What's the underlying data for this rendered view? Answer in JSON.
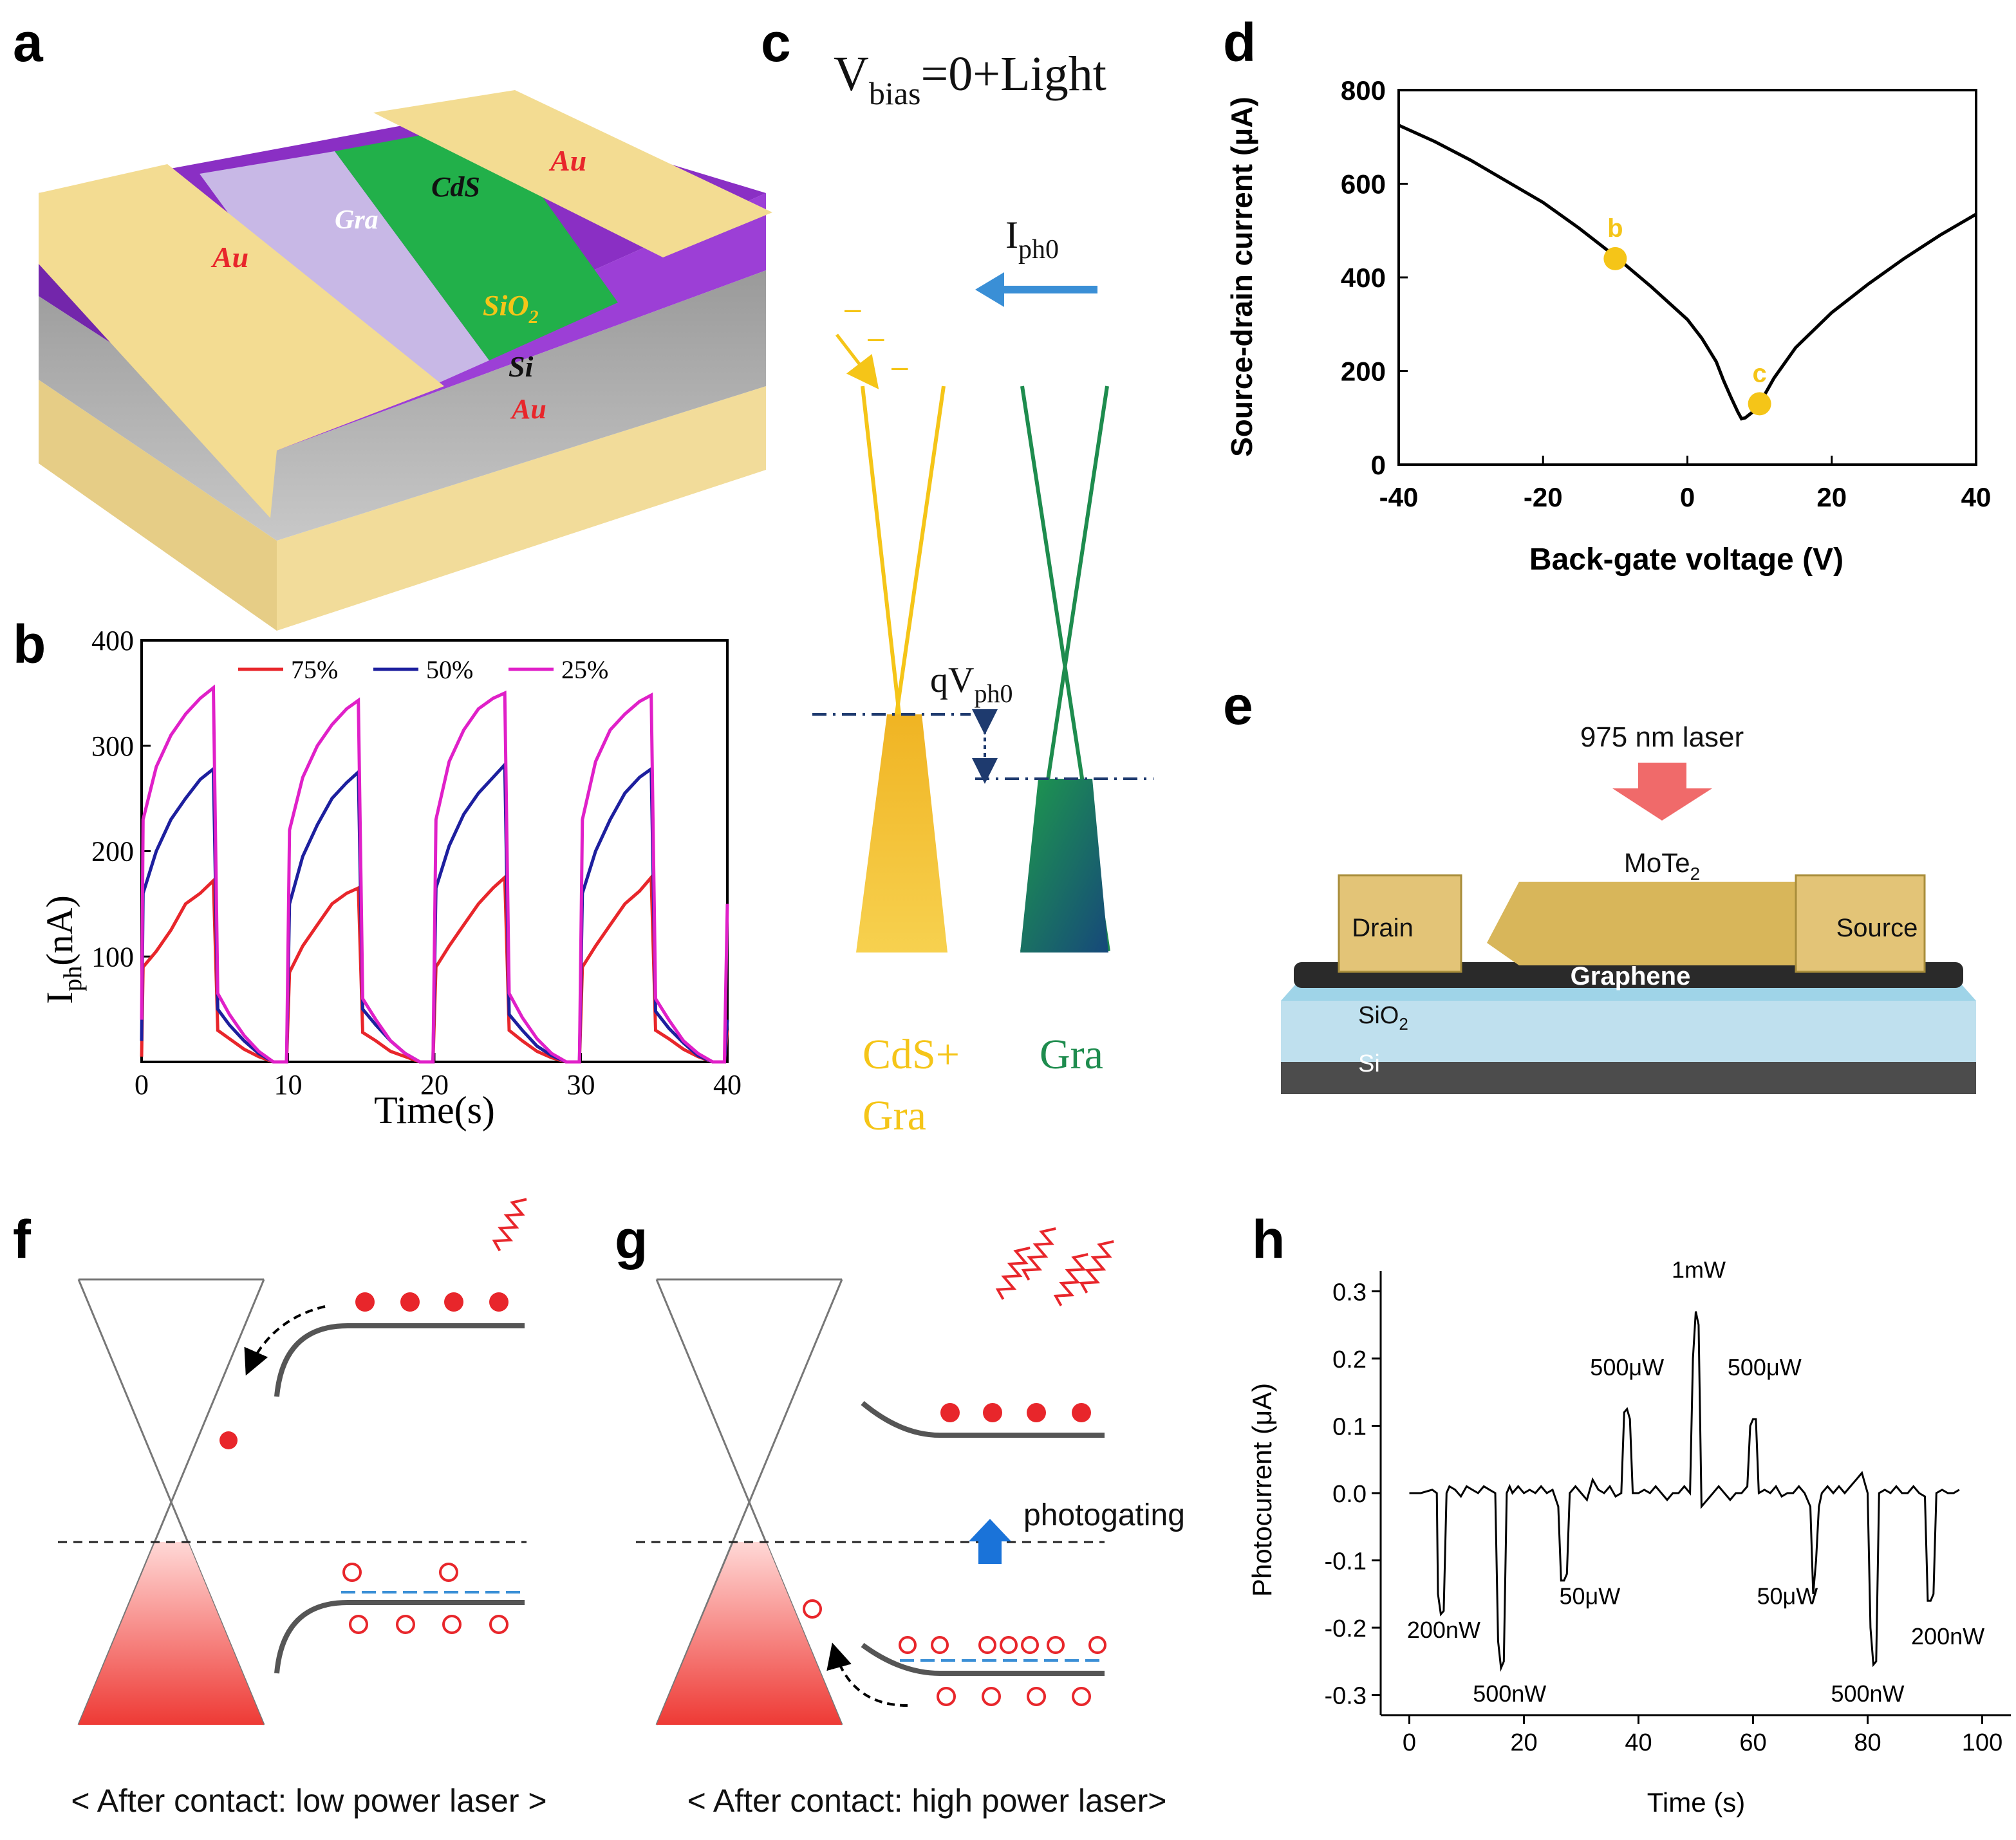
{
  "panels": {
    "a": {
      "label": "a",
      "layers": {
        "au_top_left": "Au",
        "au_top_right": "Au",
        "gra": "Gra",
        "cds": "CdS",
        "sio2": "SiO",
        "sio2_sub": "2",
        "si": "Si",
        "au_bottom": "Au"
      }
    },
    "b": {
      "label": "b",
      "legend": [
        "75%",
        "50%",
        "25%"
      ],
      "ylabel_main": "I",
      "ylabel_sub": "ph",
      "ylabel_tail": "(nA)",
      "xlabel": "Time(s)"
    },
    "c": {
      "label": "c",
      "title_main": "V",
      "title_sub": "bias",
      "title_tail": "=0+Light",
      "iph_main": "I",
      "iph_sub": "ph0",
      "qv_main": "qV",
      "qv_sub": "ph0",
      "minus": "–",
      "left_label_1": "CdS+",
      "left_label_2": "Gra",
      "right_label": "Gra"
    },
    "d": {
      "label": "d",
      "xlabel": "Back-gate voltage (V)",
      "ylabel": "Source-drain current (μA)",
      "point_b": "b",
      "point_c": "c"
    },
    "e": {
      "label": "e",
      "laser": "975 nm laser",
      "mote2_main": "MoTe",
      "mote2_sub": "2",
      "drain": "Drain",
      "source": "Source",
      "graphene": "Graphene",
      "sio2_main": "SiO",
      "sio2_sub": "2",
      "si": "Si"
    },
    "f": {
      "label": "f",
      "caption": "< After contact: low power laser >"
    },
    "g": {
      "label": "g",
      "caption": "< After contact: high power laser>",
      "photogating": "photogating"
    },
    "h": {
      "label": "h",
      "xlabel": "Time (s)",
      "ylabel": "Photocurrent (μA)",
      "annotations": [
        "200nW",
        "500nW",
        "50μW",
        "500μW",
        "1mW",
        "500μW",
        "50μW",
        "500nW",
        "200nW"
      ]
    }
  },
  "colors": {
    "red": "#e8262b",
    "blue": "#1d1f9e",
    "magenta": "#e020c8",
    "yellow": "#f5c518",
    "green": "#1e8c4e",
    "arrow_blue": "#3a8fd6",
    "laser": "#f06a6a",
    "navy": "#1e3a6e"
  },
  "chart_data": [
    {
      "id": "b",
      "type": "line",
      "title": "",
      "xlabel": "Time(s)",
      "ylabel": "Iph(nA)",
      "xlim": [
        0,
        40
      ],
      "ylim": [
        0,
        400
      ],
      "xticks": [
        0,
        10,
        20,
        30,
        40
      ],
      "yticks": [
        100,
        200,
        300,
        400
      ],
      "legend_position": "top",
      "series": [
        {
          "name": "75%",
          "color": "#e8262b",
          "x": [
            0,
            0.1,
            1,
            2,
            3,
            4,
            4.9,
            5.2,
            6,
            7,
            8,
            9,
            9.9,
            10.1,
            11,
            12,
            13,
            14,
            14.8,
            15.1,
            16,
            17,
            18,
            19,
            19.9,
            20.1,
            21,
            22,
            23,
            24,
            24.8,
            25.1,
            26,
            27,
            28,
            29,
            29.9,
            30.1,
            31,
            32,
            33,
            34,
            34.8,
            35.1,
            36,
            37,
            38,
            39,
            39.8,
            40
          ],
          "y": [
            5,
            90,
            105,
            125,
            150,
            160,
            172,
            30,
            22,
            12,
            5,
            0,
            0,
            85,
            110,
            130,
            150,
            160,
            165,
            28,
            20,
            10,
            5,
            0,
            0,
            90,
            110,
            130,
            150,
            165,
            175,
            30,
            20,
            10,
            4,
            0,
            0,
            90,
            110,
            130,
            150,
            162,
            175,
            30,
            22,
            12,
            5,
            0,
            0,
            30
          ]
        },
        {
          "name": "50%",
          "color": "#1d1f9e",
          "x": [
            0,
            0.1,
            1,
            2,
            3,
            4,
            4.9,
            5.2,
            6,
            7,
            8,
            9,
            9.9,
            10.1,
            11,
            12,
            13,
            14,
            14.8,
            15.1,
            16,
            17,
            18,
            19,
            19.9,
            20.1,
            21,
            22,
            23,
            24,
            24.8,
            25.1,
            26,
            27,
            28,
            29,
            29.9,
            30.1,
            31,
            32,
            33,
            34,
            34.8,
            35.1,
            36,
            37,
            38,
            39,
            39.8,
            40
          ],
          "y": [
            20,
            160,
            200,
            230,
            250,
            268,
            278,
            50,
            35,
            20,
            8,
            0,
            0,
            150,
            195,
            225,
            250,
            265,
            275,
            50,
            35,
            20,
            8,
            0,
            0,
            165,
            205,
            235,
            255,
            270,
            282,
            45,
            30,
            15,
            6,
            0,
            0,
            160,
            200,
            230,
            255,
            270,
            278,
            48,
            32,
            18,
            6,
            0,
            0,
            40
          ]
        },
        {
          "name": "25%",
          "color": "#e020c8",
          "x": [
            0,
            0.1,
            1,
            2,
            3,
            4,
            4.9,
            5.2,
            6,
            7,
            8,
            9,
            9.9,
            10.1,
            11,
            12,
            13,
            14,
            14.8,
            15.1,
            16,
            17,
            18,
            19,
            19.9,
            20.1,
            21,
            22,
            23,
            24,
            24.8,
            25.1,
            26,
            27,
            28,
            29,
            29.9,
            30.1,
            31,
            32,
            33,
            34,
            34.8,
            35.1,
            36,
            37,
            38,
            39,
            39.8,
            40
          ],
          "y": [
            40,
            230,
            280,
            310,
            330,
            345,
            355,
            65,
            45,
            25,
            10,
            0,
            0,
            220,
            270,
            300,
            320,
            335,
            343,
            60,
            40,
            20,
            8,
            0,
            0,
            230,
            285,
            315,
            335,
            345,
            350,
            65,
            42,
            22,
            8,
            0,
            0,
            230,
            285,
            315,
            330,
            342,
            348,
            60,
            40,
            20,
            8,
            0,
            0,
            150
          ]
        }
      ]
    },
    {
      "id": "d",
      "type": "line",
      "title": "",
      "xlabel": "Back-gate voltage (V)",
      "ylabel": "Source-drain current (μA)",
      "xlim": [
        -40,
        40
      ],
      "ylim": [
        0,
        800
      ],
      "xticks": [
        -40,
        -20,
        0,
        20,
        40
      ],
      "yticks": [
        0,
        200,
        400,
        600,
        800
      ],
      "series": [
        {
          "name": "curve",
          "color": "#000000",
          "x": [
            -40,
            -35,
            -30,
            -25,
            -20,
            -15,
            -10,
            -5,
            0,
            2,
            4,
            5,
            6,
            7,
            7.5,
            8,
            9,
            10,
            12,
            15,
            20,
            25,
            30,
            35,
            40
          ],
          "y": [
            725,
            690,
            650,
            605,
            560,
            505,
            445,
            380,
            310,
            270,
            220,
            180,
            145,
            112,
            98,
            100,
            112,
            130,
            185,
            250,
            325,
            385,
            440,
            490,
            535
          ]
        }
      ],
      "markers": [
        {
          "label": "b",
          "x": -10,
          "y": 440
        },
        {
          "label": "c",
          "x": 10,
          "y": 130
        }
      ]
    },
    {
      "id": "h",
      "type": "line",
      "title": "",
      "xlabel": "Time (s)",
      "ylabel": "Photocurrent (μA)",
      "xlim": [
        -5,
        105
      ],
      "ylim": [
        -0.33,
        0.33
      ],
      "xticks": [
        0,
        20,
        40,
        60,
        80,
        100
      ],
      "yticks": [
        -0.3,
        -0.2,
        -0.1,
        0.0,
        0.1,
        0.2,
        0.3
      ],
      "series": [
        {
          "name": "photocurrent",
          "color": "#000000",
          "x": [
            0,
            2,
            4,
            4.8,
            5,
            5.5,
            6,
            6.5,
            7,
            8,
            9,
            10,
            11,
            12,
            13,
            14,
            15,
            15.5,
            16,
            16.5,
            17,
            17.5,
            18,
            19,
            20,
            21,
            22,
            23,
            24,
            25,
            26,
            26.5,
            27,
            27.5,
            28,
            29,
            30,
            31,
            32,
            33,
            34,
            35,
            36,
            37,
            37.5,
            38,
            38.5,
            39,
            40,
            41,
            42,
            43,
            44,
            45,
            46,
            47,
            48,
            49,
            49.5,
            50,
            50.5,
            51,
            52,
            53,
            54,
            55,
            56,
            57,
            58,
            59,
            59.5,
            60,
            60.5,
            61,
            62,
            63,
            64,
            65,
            66,
            67,
            68,
            69,
            70,
            70.5,
            71,
            71.5,
            72,
            73,
            74,
            75,
            76,
            77,
            78,
            79,
            80,
            80.5,
            81,
            81.5,
            82,
            83,
            84,
            85,
            86,
            87,
            88,
            89,
            90,
            90.5,
            91,
            91.5,
            92,
            93,
            94,
            95,
            96
          ],
          "y": [
            0.0,
            0.0,
            0.005,
            0.0,
            -0.15,
            -0.18,
            -0.175,
            0.0,
            0.01,
            0.005,
            -0.005,
            0.01,
            0.005,
            0.0,
            0.01,
            0.005,
            0.0,
            -0.22,
            -0.26,
            -0.25,
            0.0,
            0.01,
            0.0,
            0.01,
            0.0,
            0.005,
            0.0,
            0.01,
            0.0,
            0.005,
            -0.02,
            -0.13,
            -0.13,
            -0.12,
            0.0,
            0.01,
            0.0,
            -0.01,
            0.02,
            0.005,
            0.0,
            0.01,
            -0.005,
            0.0,
            0.12,
            0.125,
            0.11,
            0.0,
            0.0,
            0.005,
            0.0,
            0.01,
            0.0,
            -0.01,
            0.0,
            0.0,
            0.01,
            0.0,
            0.2,
            0.27,
            0.25,
            -0.02,
            -0.01,
            0.0,
            0.01,
            0.0,
            -0.01,
            0.0,
            0.0,
            0.01,
            0.1,
            0.11,
            0.11,
            0.0,
            0.005,
            0.0,
            0.01,
            -0.005,
            0.0,
            0.0,
            0.01,
            0.0,
            -0.02,
            -0.15,
            -0.1,
            -0.02,
            0.0,
            0.01,
            0.0,
            0.01,
            0.0,
            0.01,
            0.02,
            0.03,
            0.0,
            -0.2,
            -0.255,
            -0.25,
            0.0,
            0.005,
            0.0,
            0.01,
            0.0,
            0.0,
            0.01,
            0.0,
            -0.005,
            -0.16,
            -0.16,
            -0.15,
            0.0,
            0.005,
            0.0,
            0.0,
            0.005
          ]
        }
      ]
    }
  ]
}
